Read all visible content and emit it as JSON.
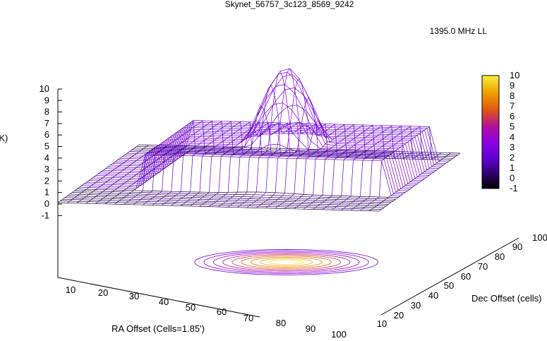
{
  "chart_data": {
    "type": "surface3d",
    "title": "Skynet_56757_3c123_8569_9242",
    "legend_label": "1395.0 MHz LL",
    "zlabel": "Intensity (K)",
    "xlabel": "RA Offset (Cells=1.85')",
    "ylabel": "Dec Offset (cells)",
    "z_ticks": [
      "10",
      "9",
      "8",
      "7",
      "6",
      "5",
      "4",
      "3",
      "2",
      "1",
      "0",
      "-1"
    ],
    "x_ticks": [
      "10",
      "20",
      "30",
      "40",
      "50",
      "60",
      "70",
      "80",
      "90",
      "100"
    ],
    "y_ticks": [
      "10",
      "20",
      "30",
      "40",
      "50",
      "60",
      "70",
      "80",
      "90",
      "100"
    ],
    "cb_ticks": [
      "10",
      "9",
      "8",
      "7",
      "6",
      "5",
      "4",
      "3",
      "2",
      "1",
      "0",
      "-1"
    ],
    "zlim": [
      -1,
      10
    ],
    "xlim": [
      0,
      100
    ],
    "ylim": [
      0,
      100
    ],
    "baseline_level": 0,
    "plateau_level": 3,
    "peak_level": 9.5,
    "peak_center": [
      58,
      52
    ],
    "colors": {
      "low": "#000000",
      "mid": "#8a00e6",
      "high_mid": "#e05a10",
      "high": "#f0e020",
      "legend_line_start": "#7a00d8",
      "legend_line_end": "#f0b000"
    }
  }
}
